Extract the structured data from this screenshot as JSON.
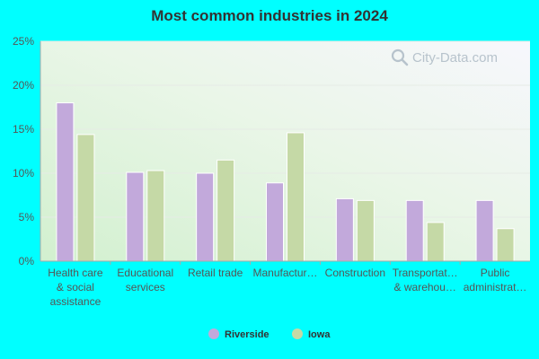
{
  "colors": {
    "riverside": "#c2a9db",
    "iowa": "#c5d9a6",
    "background": "#00ffff"
  },
  "watermark": {
    "text": "City-Data.com",
    "icon": "magnifier-icon"
  },
  "chart_data": {
    "type": "bar",
    "title": "Most common industries in 2024",
    "xlabel": "",
    "ylabel": "",
    "ylim": [
      0,
      25
    ],
    "yticks": [
      0,
      5,
      10,
      15,
      20,
      25
    ],
    "ytick_labels": [
      "0%",
      "5%",
      "10%",
      "15%",
      "20%",
      "25%"
    ],
    "categories": [
      [
        "Health care",
        "& social",
        "assistance"
      ],
      [
        "Educational",
        "services"
      ],
      [
        "Retail trade"
      ],
      [
        "Manufactur…"
      ],
      [
        "Construction"
      ],
      [
        "Transportat…",
        "& warehou…"
      ],
      [
        "Public",
        "administrat…"
      ]
    ],
    "series": [
      {
        "name": "Riverside",
        "values": [
          18.0,
          10.1,
          10.0,
          8.9,
          7.1,
          6.9,
          6.9
        ]
      },
      {
        "name": "Iowa",
        "values": [
          14.4,
          10.3,
          11.5,
          14.6,
          6.9,
          4.4,
          3.7
        ]
      }
    ],
    "grid": true,
    "legend": "bottom-center"
  }
}
